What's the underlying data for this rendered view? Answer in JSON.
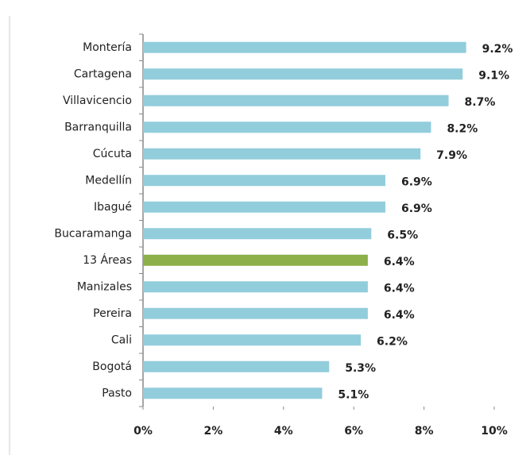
{
  "chart_data": {
    "type": "bar",
    "orientation": "horizontal",
    "categories": [
      "Montería",
      "Cartagena",
      "Villavicencio",
      "Barranquilla",
      "Cúcuta",
      "Medellín",
      "Ibagué",
      "Bucaramanga",
      "13 Áreas",
      "Manizales",
      "Pereira",
      "Cali",
      "Bogotá",
      "Pasto"
    ],
    "values": [
      9.2,
      9.1,
      8.7,
      8.2,
      7.9,
      6.9,
      6.9,
      6.5,
      6.4,
      6.4,
      6.4,
      6.2,
      5.3,
      5.1
    ],
    "value_labels": [
      "9.2%",
      "9.1%",
      "8.7%",
      "8.2%",
      "7.9%",
      "6.9%",
      "6.9%",
      "6.5%",
      "6.4%",
      "6.4%",
      "6.4%",
      "6.2%",
      "5.3%",
      "5.1%"
    ],
    "colors": [
      "#92cddc",
      "#92cddc",
      "#92cddc",
      "#92cddc",
      "#92cddc",
      "#92cddc",
      "#92cddc",
      "#92cddc",
      "#8db04a",
      "#92cddc",
      "#92cddc",
      "#92cddc",
      "#92cddc",
      "#92cddc"
    ],
    "xlim": [
      0,
      10
    ],
    "xticks": [
      {
        "value": 0,
        "label": "0%"
      },
      {
        "value": 2,
        "label": "2%"
      },
      {
        "value": 4,
        "label": "4%"
      },
      {
        "value": 6,
        "label": "6%"
      },
      {
        "value": 8,
        "label": "8%"
      },
      {
        "value": 10,
        "label": "10%"
      }
    ],
    "grid": false
  }
}
